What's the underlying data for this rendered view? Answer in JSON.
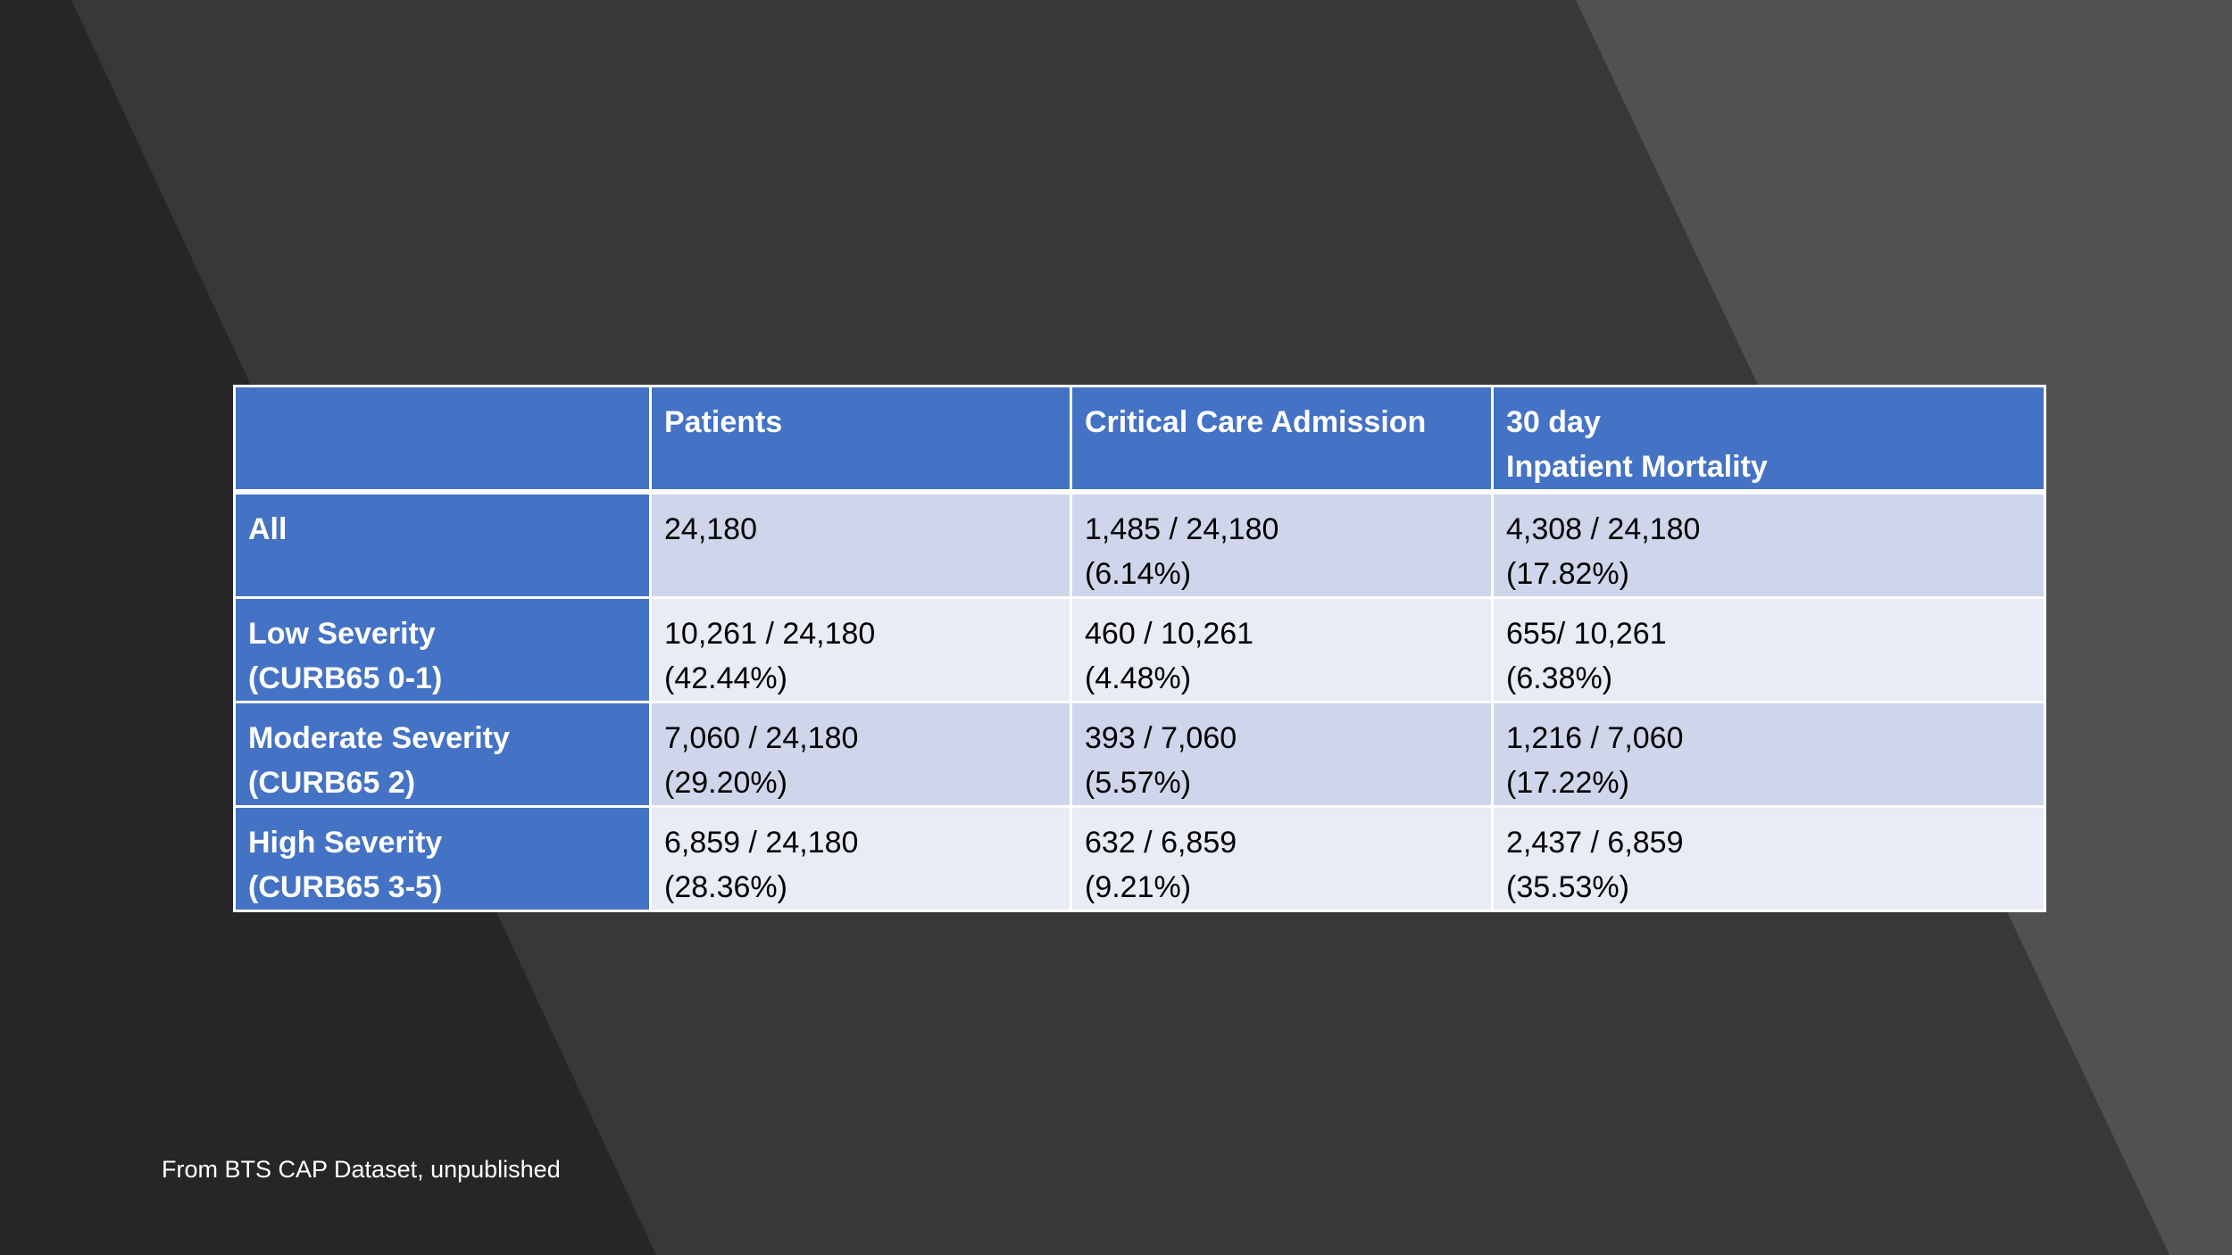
{
  "colors": {
    "header_bg": "#4472c4",
    "row_band_dark": "#cfd5ea",
    "row_band_light": "#e9ebf5",
    "background_dark": "#262626",
    "background_mid": "#383838",
    "background_light": "#515151"
  },
  "table": {
    "header": {
      "corner": "",
      "patients": "Patients",
      "critical_care": "Critical Care Admission",
      "mortality_line1": "30 day",
      "mortality_line2": "Inpatient Mortality"
    },
    "rows": [
      {
        "label1": "All",
        "label2": "",
        "patients1": "24,180",
        "patients2": "",
        "critical1": "1,485 / 24,180",
        "critical2": "(6.14%)",
        "mortality1": "4,308 / 24,180",
        "mortality2": "(17.82%)"
      },
      {
        "label1": "Low Severity",
        "label2": "(CURB65 0-1)",
        "patients1": "10,261 / 24,180",
        "patients2": "(42.44%)",
        "critical1": "460 / 10,261",
        "critical2": "(4.48%)",
        "mortality1": "655/ 10,261",
        "mortality2": "(6.38%)"
      },
      {
        "label1": "Moderate Severity",
        "label2": "(CURB65 2)",
        "patients1": "7,060 / 24,180",
        "patients2": "(29.20%)",
        "critical1": "393 / 7,060",
        "critical2": "(5.57%)",
        "mortality1": "1,216 / 7,060",
        "mortality2": "(17.22%)"
      },
      {
        "label1": "High Severity",
        "label2": "(CURB65 3-5)",
        "patients1": "6,859 / 24,180",
        "patients2": "(28.36%)",
        "critical1": "632 / 6,859",
        "critical2": "(9.21%)",
        "mortality1": "2,437 / 6,859",
        "mortality2": "(35.53%)"
      }
    ]
  },
  "footer": {
    "source": "From BTS CAP Dataset, unpublished"
  }
}
